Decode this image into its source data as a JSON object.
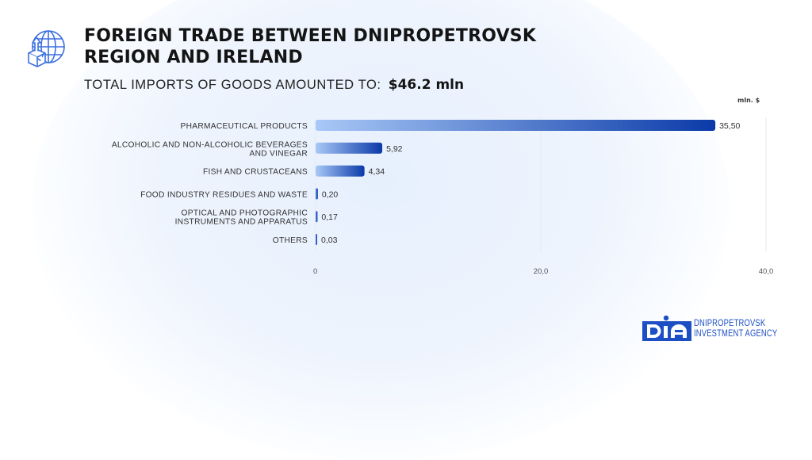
{
  "header": {
    "title": "FOREIGN TRADE BETWEEN DNIPROPETROVSK REGION AND IRELAND",
    "subtitle_label": "TOTAL IMPORTS OF GOODS AMOUNTED TO:",
    "subtitle_total": "$46.2 mln",
    "icon": "globe-export-box-icon"
  },
  "chart_data": {
    "type": "bar",
    "orientation": "horizontal",
    "title": "FOREIGN TRADE BETWEEN DNIPROPETROVSK REGION AND IRELAND",
    "unit_label": "mln. $",
    "categories": [
      [
        "PHARMACEUTICAL PRODUCTS"
      ],
      [
        "ALCOHOLIC AND NON-ALCOHOLIC BEVERAGES",
        "AND VINEGAR"
      ],
      [
        "FISH AND CRUSTACEANS"
      ],
      [
        "FOOD INDUSTRY RESIDUES AND WASTE"
      ],
      [
        "OPTICAL AND PHOTOGRAPHIC",
        "INSTRUMENTS AND APPARATUS"
      ],
      [
        "OTHERS"
      ]
    ],
    "values": [
      35.5,
      5.92,
      4.34,
      0.2,
      0.17,
      0.03
    ],
    "value_labels": [
      "35,50",
      "5,92",
      "4,34",
      "0,20",
      "0,17",
      "0,03"
    ],
    "xlim": [
      0,
      40
    ],
    "ticks": [
      0,
      20,
      40
    ],
    "tick_labels": [
      "0",
      "20,0",
      "40,0"
    ],
    "grid": true,
    "colors": {
      "bar_start": "#a9c8f7",
      "bar_end": "#0a3aa8",
      "grid": "#e6e9ef"
    }
  },
  "logo": {
    "mark": "DIA",
    "line1": "DNIPROPETROVSK",
    "line2": "INVESTMENT AGENCY",
    "color": "#1d4fc4"
  }
}
